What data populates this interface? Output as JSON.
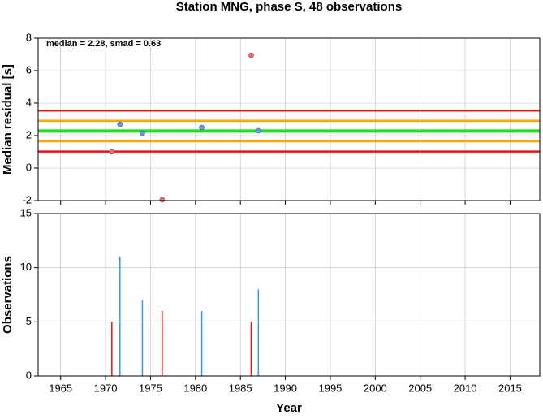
{
  "chart_data": [
    {
      "type": "scatter",
      "title": "Station MNG, phase S, 48 observations",
      "ylabel": "Median residual [s]",
      "annotation": "median = 2.28, smad = 0.63",
      "x": [
        1970.7,
        1971.6,
        1974.1,
        1976.3,
        1980.7,
        1986.2,
        1987.0
      ],
      "values": [
        1.0,
        2.7,
        2.15,
        -1.95,
        2.5,
        6.95,
        2.3
      ],
      "colors": [
        "#ff6a6a",
        "#5a9cff",
        "#5a9cff",
        "#ff6a6a",
        "#5a9cff",
        "#ff6a6a",
        "#5a9cff"
      ],
      "hlines": [
        {
          "value": 3.54,
          "color": "#ee1111"
        },
        {
          "value": 2.91,
          "color": "#ffa500"
        },
        {
          "value": 2.28,
          "color": "#22dd22"
        },
        {
          "value": 1.65,
          "color": "#ffa500"
        },
        {
          "value": 1.02,
          "color": "#ee1111"
        }
      ],
      "xlim": [
        1962.5,
        2018.3
      ],
      "xticks": [
        1965,
        1970,
        1975,
        1980,
        1985,
        1990,
        1995,
        2000,
        2005,
        2010,
        2015
      ],
      "ylim": [
        -2,
        8
      ],
      "yticks": [
        -2,
        0,
        2,
        4,
        6,
        8
      ],
      "grid": true
    },
    {
      "type": "bar",
      "ylabel": "Observations",
      "xlabel": "Year",
      "x": [
        1970.7,
        1971.6,
        1974.1,
        1976.3,
        1980.7,
        1986.2,
        1987.0
      ],
      "values": [
        5,
        11,
        7,
        6,
        6,
        5,
        8
      ],
      "colors": [
        "#ee1111",
        "#3399ee",
        "#3399ee",
        "#ee1111",
        "#3399ee",
        "#ee1111",
        "#3399ee"
      ],
      "xlim": [
        1962.5,
        2018.3
      ],
      "xticks": [
        1965,
        1970,
        1975,
        1980,
        1985,
        1990,
        1995,
        2000,
        2005,
        2010,
        2015
      ],
      "ylim": [
        0,
        15
      ],
      "yticks": [
        0,
        5,
        10,
        15
      ],
      "grid": true
    }
  ]
}
